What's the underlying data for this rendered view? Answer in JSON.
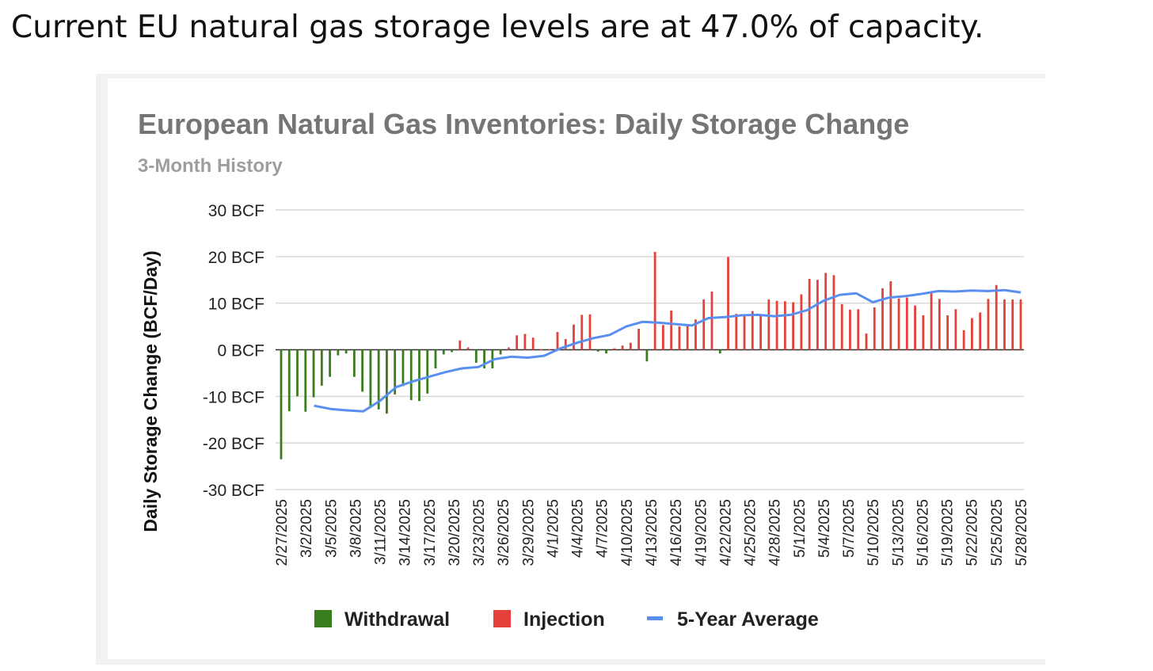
{
  "headline": "Current EU natural gas storage levels are at 47.0% of capacity.",
  "chart_data": {
    "type": "bar",
    "title": "European Natural Gas Inventories: Daily Storage Change",
    "subtitle": "3-Month History",
    "ylabel": "Daily Storage Change (BCF/Day)",
    "xlabel": "",
    "ylim": [
      -30,
      30
    ],
    "yticks": [
      30,
      20,
      10,
      0,
      -10,
      -20,
      -30
    ],
    "ytick_labels": [
      "30 BCF",
      "20 BCF",
      "10 BCF",
      "0 BCF",
      "-10 BCF",
      "-20 BCF",
      "-30 BCF"
    ],
    "grid": true,
    "legend_position": "bottom",
    "colors": {
      "withdrawal": "#3a7d1f",
      "injection": "#e5413a",
      "average": "#5a8ff0",
      "grid": "#d9d9d9",
      "axis": "#333333"
    },
    "series": [
      {
        "name": "Withdrawal",
        "kind": "bar",
        "color": "#3a7d1f"
      },
      {
        "name": "Injection",
        "kind": "bar",
        "color": "#e5413a"
      },
      {
        "name": "5-Year Average",
        "kind": "line",
        "color": "#5a8ff0"
      }
    ],
    "x_tick_labels": [
      "2/27/2025",
      "3/2/2025",
      "3/5/2025",
      "3/8/2025",
      "3/11/2025",
      "3/14/2025",
      "3/17/2025",
      "3/20/2025",
      "3/23/2025",
      "3/26/2025",
      "3/29/2025",
      "4/1/2025",
      "4/4/2025",
      "4/7/2025",
      "4/10/2025",
      "4/13/2025",
      "4/16/2025",
      "4/19/2025",
      "4/22/2025",
      "4/25/2025",
      "4/28/2025",
      "5/1/2025",
      "5/4/2025",
      "5/7/2025",
      "5/10/2025",
      "5/13/2025",
      "5/16/2025",
      "5/19/2025",
      "5/22/2025",
      "5/25/2025",
      "5/28/2025"
    ],
    "daily_change": [
      -23.5,
      -13.2,
      -10.0,
      -13.3,
      -10.2,
      -7.7,
      -5.8,
      -1.2,
      -0.8,
      -5.8,
      -9.0,
      -12.5,
      -12.8,
      -13.7,
      -9.6,
      -7.8,
      -10.8,
      -11.0,
      -9.4,
      -4.0,
      -1.0,
      -0.5,
      2.0,
      0.5,
      -2.8,
      -4.0,
      -4.0,
      -1.0,
      0.5,
      3.1,
      3.4,
      2.6,
      0.1,
      0.1,
      3.8,
      2.3,
      5.4,
      7.5,
      7.6,
      -0.4,
      -0.8,
      0.3,
      0.9,
      1.5,
      4.5,
      -2.5,
      21.0,
      5.3,
      8.4,
      5.0,
      5.2,
      6.5,
      10.8,
      12.5,
      -0.8,
      19.9,
      7.7,
      7.4,
      8.3,
      7.5,
      10.8,
      10.5,
      10.4,
      10.2,
      11.9,
      15.2,
      15.0,
      16.5,
      16.0,
      9.8,
      8.6,
      8.7,
      3.5,
      9.1,
      13.2,
      14.7,
      11.0,
      11.2,
      9.5,
      7.4,
      12.2,
      10.9,
      7.4,
      8.7,
      4.2,
      6.8,
      8.0,
      10.9,
      13.9,
      10.8,
      10.8,
      10.8
    ],
    "five_year_average_points": [
      {
        "x": "3/3/2025",
        "y": -12.0
      },
      {
        "x": "3/5/2025",
        "y": -12.7
      },
      {
        "x": "3/7/2025",
        "y": -13.0
      },
      {
        "x": "3/9/2025",
        "y": -13.2
      },
      {
        "x": "3/11/2025",
        "y": -11.0
      },
      {
        "x": "3/13/2025",
        "y": -8.0
      },
      {
        "x": "3/15/2025",
        "y": -6.8
      },
      {
        "x": "3/17/2025",
        "y": -5.8
      },
      {
        "x": "3/19/2025",
        "y": -4.8
      },
      {
        "x": "3/21/2025",
        "y": -4.0
      },
      {
        "x": "3/23/2025",
        "y": -3.7
      },
      {
        "x": "3/25/2025",
        "y": -2.0
      },
      {
        "x": "3/27/2025",
        "y": -1.5
      },
      {
        "x": "3/29/2025",
        "y": -1.7
      },
      {
        "x": "3/31/2025",
        "y": -1.3
      },
      {
        "x": "4/2/2025",
        "y": 0.3
      },
      {
        "x": "4/4/2025",
        "y": 1.5
      },
      {
        "x": "4/6/2025",
        "y": 2.5
      },
      {
        "x": "4/8/2025",
        "y": 3.2
      },
      {
        "x": "4/10/2025",
        "y": 5.0
      },
      {
        "x": "4/12/2025",
        "y": 6.0
      },
      {
        "x": "4/14/2025",
        "y": 5.8
      },
      {
        "x": "4/16/2025",
        "y": 5.5
      },
      {
        "x": "4/18/2025",
        "y": 5.2
      },
      {
        "x": "4/20/2025",
        "y": 6.8
      },
      {
        "x": "4/22/2025",
        "y": 7.0
      },
      {
        "x": "4/24/2025",
        "y": 7.4
      },
      {
        "x": "4/26/2025",
        "y": 7.5
      },
      {
        "x": "4/28/2025",
        "y": 7.2
      },
      {
        "x": "4/30/2025",
        "y": 7.5
      },
      {
        "x": "5/2/2025",
        "y": 8.5
      },
      {
        "x": "5/4/2025",
        "y": 10.5
      },
      {
        "x": "5/6/2025",
        "y": 11.8
      },
      {
        "x": "5/8/2025",
        "y": 12.1
      },
      {
        "x": "5/10/2025",
        "y": 10.2
      },
      {
        "x": "5/12/2025",
        "y": 11.2
      },
      {
        "x": "5/14/2025",
        "y": 11.5
      },
      {
        "x": "5/16/2025",
        "y": 12.0
      },
      {
        "x": "5/18/2025",
        "y": 12.6
      },
      {
        "x": "5/20/2025",
        "y": 12.5
      },
      {
        "x": "5/22/2025",
        "y": 12.7
      },
      {
        "x": "5/24/2025",
        "y": 12.6
      },
      {
        "x": "5/26/2025",
        "y": 12.8
      },
      {
        "x": "5/28/2025",
        "y": 12.3
      }
    ]
  }
}
